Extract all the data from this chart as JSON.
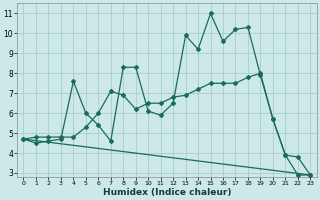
{
  "xlabel": "Humidex (Indice chaleur)",
  "bg_color": "#cce8e8",
  "grid_color": "#aacccc",
  "line_color": "#1a6b5a",
  "xlim": [
    -0.5,
    23.5
  ],
  "ylim": [
    2.8,
    11.5
  ],
  "xticks": [
    0,
    1,
    2,
    3,
    4,
    5,
    6,
    7,
    8,
    9,
    10,
    11,
    12,
    13,
    14,
    15,
    16,
    17,
    18,
    19,
    20,
    21,
    22,
    23
  ],
  "yticks": [
    3,
    4,
    5,
    6,
    7,
    8,
    9,
    10,
    11
  ],
  "line1_x": [
    0,
    1,
    2,
    3,
    4,
    5,
    6,
    7,
    8,
    9,
    10,
    11,
    12,
    13,
    14,
    15,
    16,
    17,
    18,
    19,
    20,
    21,
    22,
    23
  ],
  "line1_y": [
    4.7,
    4.5,
    4.6,
    4.7,
    7.6,
    6.0,
    5.4,
    4.6,
    8.3,
    8.3,
    6.1,
    5.9,
    6.5,
    9.9,
    9.2,
    11.0,
    9.6,
    10.2,
    10.3,
    7.9,
    5.7,
    3.9,
    3.8,
    2.9
  ],
  "line2_x": [
    0,
    1,
    2,
    3,
    4,
    5,
    6,
    7,
    8,
    9,
    10,
    11,
    12,
    13,
    14,
    15,
    16,
    17,
    18,
    19,
    20,
    21,
    22,
    23
  ],
  "line2_y": [
    4.7,
    4.8,
    4.8,
    4.8,
    4.8,
    5.3,
    6.0,
    7.1,
    6.9,
    6.2,
    6.5,
    6.5,
    6.8,
    6.9,
    7.2,
    7.5,
    7.5,
    7.5,
    7.8,
    8.0,
    5.7,
    3.9,
    2.9,
    2.9
  ],
  "line3_x": [
    0,
    23
  ],
  "line3_y": [
    4.7,
    2.9
  ]
}
